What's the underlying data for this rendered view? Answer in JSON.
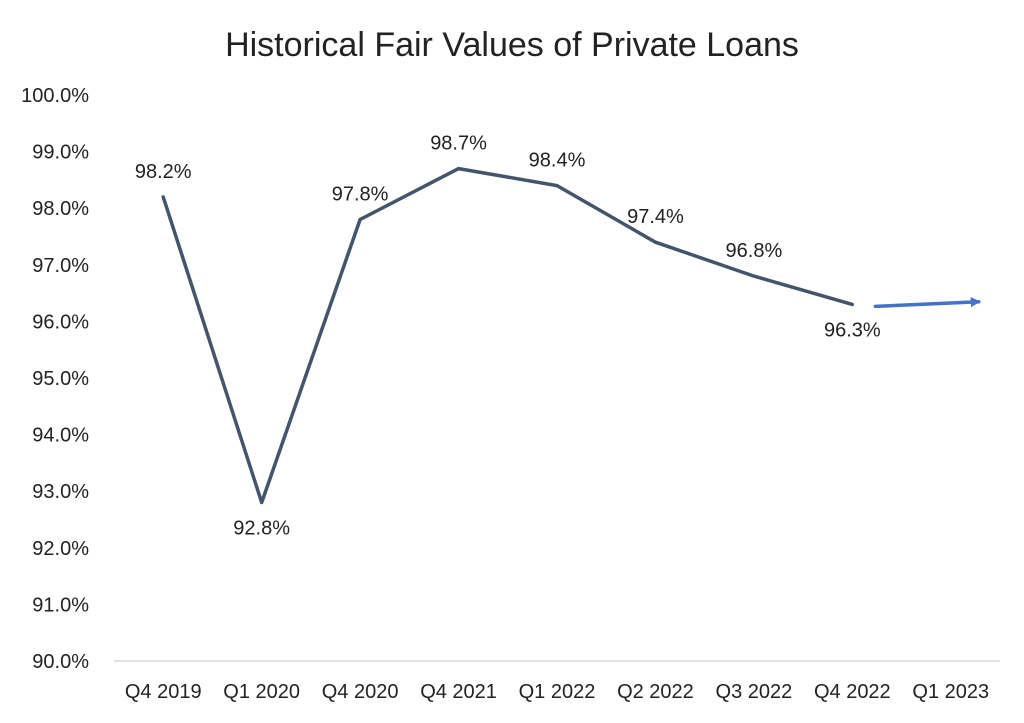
{
  "chart_data": {
    "type": "line",
    "title": "Historical Fair Values of Private Loans",
    "xlabel": "",
    "ylabel": "",
    "categories": [
      "Q4 2019",
      "Q1 2020",
      "Q4 2020",
      "Q4 2021",
      "Q1 2022",
      "Q2 2022",
      "Q3 2022",
      "Q4 2022",
      "Q1 2023"
    ],
    "series": [
      {
        "values": [
          98.2,
          92.8,
          97.8,
          98.7,
          98.4,
          97.4,
          96.8,
          96.3,
          null
        ],
        "data_labels": [
          "98.2%",
          "92.8%",
          "97.8%",
          "98.7%",
          "98.4%",
          "97.4%",
          "96.8%",
          "96.3%",
          ""
        ],
        "color": "#44546a"
      }
    ],
    "projection": {
      "from": {
        "category": "Q4 2022",
        "value": 96.3
      },
      "to": {
        "category": "Q1 2023",
        "value": 96.4
      },
      "color": "#4472c4",
      "style": "arrow"
    },
    "ylim": [
      90,
      100
    ],
    "y_ticks": [
      "90.0%",
      "91.0%",
      "92.0%",
      "93.0%",
      "94.0%",
      "95.0%",
      "96.0%",
      "97.0%",
      "98.0%",
      "99.0%",
      "100.0%"
    ],
    "grid": false,
    "legend": "none",
    "axis_color": "#d9d9d9"
  }
}
